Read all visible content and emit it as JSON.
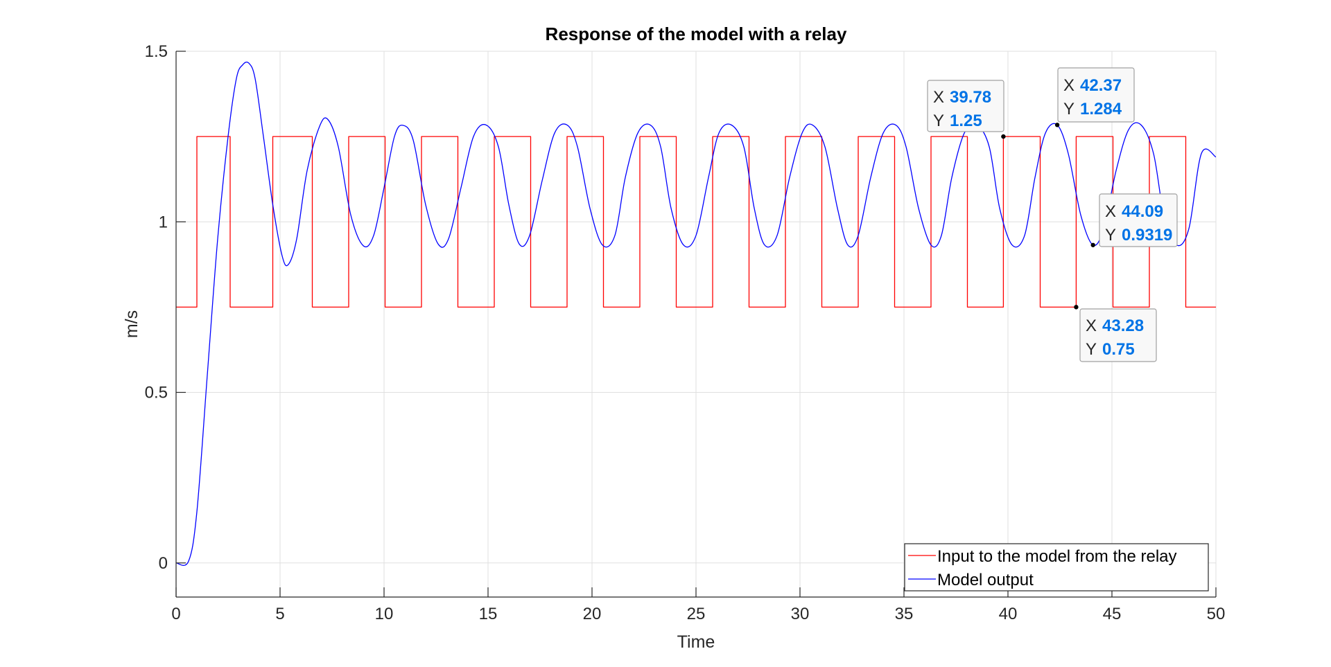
{
  "chart_data": {
    "type": "line",
    "title": "Response of the model with a relay",
    "xlabel": "Time",
    "ylabel": "m/s",
    "xlim": [
      0,
      50
    ],
    "ylim": [
      -0.1,
      1.5
    ],
    "xticks": [
      0,
      5,
      10,
      15,
      20,
      25,
      30,
      35,
      40,
      45,
      50
    ],
    "xtick_labels": [
      "0",
      "5",
      "10",
      "15",
      "20",
      "25",
      "30",
      "35",
      "40",
      "45",
      "50"
    ],
    "yticks": [
      0,
      0.5,
      1,
      1.5
    ],
    "ytick_labels": [
      "0",
      "0.5",
      "1",
      "1.5"
    ],
    "grid": true,
    "legend_position": "bottom-right",
    "series": [
      {
        "name": "Input to the model from the relay",
        "color": "#ff0000",
        "style": "step",
        "x": [
          0,
          1.0,
          1.0,
          2.6,
          2.6,
          4.65,
          4.65,
          6.55,
          6.55,
          8.3,
          8.3,
          10.05,
          10.05,
          11.8,
          11.8,
          13.55,
          13.55,
          15.3,
          15.3,
          17.05,
          17.05,
          18.8,
          18.8,
          20.55,
          20.55,
          22.3,
          22.3,
          24.05,
          24.05,
          25.8,
          25.8,
          27.55,
          27.55,
          29.3,
          29.3,
          31.05,
          31.05,
          32.8,
          32.8,
          34.55,
          34.55,
          36.3,
          36.3,
          38.05,
          38.05,
          39.78,
          39.78,
          41.55,
          41.55,
          43.28,
          43.28,
          45.05,
          45.05,
          46.8,
          46.8,
          48.55,
          48.55,
          50
        ],
        "y": [
          0.75,
          0.75,
          1.25,
          1.25,
          0.75,
          0.75,
          1.25,
          1.25,
          0.75,
          0.75,
          1.25,
          1.25,
          0.75,
          0.75,
          1.25,
          1.25,
          0.75,
          0.75,
          1.25,
          1.25,
          0.75,
          0.75,
          1.25,
          1.25,
          0.75,
          0.75,
          1.25,
          1.25,
          0.75,
          0.75,
          1.25,
          1.25,
          0.75,
          0.75,
          1.25,
          1.25,
          0.75,
          0.75,
          1.25,
          1.25,
          0.75,
          0.75,
          1.25,
          1.25,
          0.75,
          0.75,
          1.25,
          1.25,
          0.75,
          0.75,
          1.25,
          1.25,
          0.75,
          0.75,
          1.25,
          1.25,
          0.75,
          0.75
        ]
      },
      {
        "name": "Model output",
        "color": "#0000ff",
        "style": "smooth",
        "x": [
          0,
          0.6,
          1.0,
          1.5,
          2.0,
          2.5,
          2.9,
          3.2,
          3.5,
          3.8,
          4.2,
          4.65,
          5.1,
          5.4,
          5.8,
          6.3,
          6.9,
          7.3,
          7.8,
          8.4,
          9.0,
          9.5,
          10.0,
          10.5,
          10.9,
          11.4,
          12.0,
          12.6,
          13.1,
          13.7,
          14.3,
          14.9,
          15.5,
          16.0,
          16.5,
          17.0,
          17.6,
          18.2,
          18.8,
          19.3,
          19.9,
          20.5,
          21.1,
          21.6,
          22.2,
          22.8,
          23.3,
          23.8,
          24.4,
          25.0,
          25.6,
          26.1,
          26.7,
          27.3,
          27.8,
          28.3,
          28.9,
          29.5,
          30.1,
          30.6,
          31.2,
          31.8,
          32.3,
          32.8,
          33.4,
          34.0,
          34.6,
          35.1,
          35.7,
          36.3,
          36.8,
          37.3,
          37.9,
          38.5,
          39.1,
          39.6,
          40.2,
          40.8,
          41.3,
          41.8,
          42.37,
          42.9,
          43.5,
          44.09,
          44.6,
          45.2,
          45.8,
          46.4,
          47.0,
          47.5,
          48.1,
          48.7,
          49.3,
          50.0
        ],
        "y": [
          0,
          0.005,
          0.15,
          0.55,
          0.95,
          1.25,
          1.42,
          1.46,
          1.465,
          1.42,
          1.25,
          1.05,
          0.9,
          0.875,
          0.95,
          1.15,
          1.28,
          1.3,
          1.22,
          1.02,
          0.93,
          0.96,
          1.1,
          1.25,
          1.283,
          1.24,
          1.05,
          0.935,
          0.95,
          1.1,
          1.25,
          1.284,
          1.22,
          1.05,
          0.935,
          0.96,
          1.12,
          1.26,
          1.284,
          1.22,
          1.04,
          0.932,
          0.96,
          1.13,
          1.26,
          1.284,
          1.22,
          1.04,
          0.932,
          0.96,
          1.13,
          1.26,
          1.284,
          1.22,
          1.04,
          0.932,
          0.96,
          1.13,
          1.26,
          1.284,
          1.22,
          1.04,
          0.932,
          0.96,
          1.13,
          1.26,
          1.284,
          1.22,
          1.04,
          0.932,
          0.96,
          1.13,
          1.26,
          1.284,
          1.22,
          1.04,
          0.932,
          0.96,
          1.13,
          1.26,
          1.284,
          1.2,
          1.02,
          0.932,
          0.98,
          1.15,
          1.27,
          1.284,
          1.2,
          1.02,
          0.932,
          0.98,
          1.2,
          1.19
        ]
      }
    ],
    "datatips": [
      {
        "x": 39.78,
        "y": 1.25,
        "label_x": "X",
        "label_y": "Y",
        "x_text": "39.78",
        "y_text": "1.25",
        "placement": "above-left"
      },
      {
        "x": 42.37,
        "y": 1.284,
        "label_x": "X",
        "label_y": "Y",
        "x_text": "42.37",
        "y_text": "1.284",
        "placement": "above-right"
      },
      {
        "x": 44.09,
        "y": 0.9319,
        "label_x": "X",
        "label_y": "Y",
        "x_text": "44.09",
        "y_text": "0.9319",
        "placement": "above-right"
      },
      {
        "x": 43.28,
        "y": 0.75,
        "label_x": "X",
        "label_y": "Y",
        "x_text": "43.28",
        "y_text": "0.75",
        "placement": "below-right"
      }
    ]
  },
  "colors": {
    "axis": "#262626",
    "grid": "#dfdfdf",
    "datatip_value": "#0073e6"
  }
}
